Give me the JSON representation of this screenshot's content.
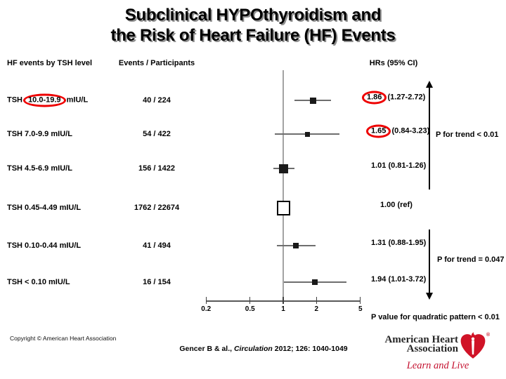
{
  "slide": {
    "title_line1": "Subclinical HYPOthyroidism and",
    "title_line2": "the Risk of Heart Failure (HF) Events"
  },
  "chart_data": {
    "type": "forest-plot",
    "title": "Subclinical HYPOthyroidism and the Risk of Heart Failure (HF) Events",
    "x_axis": {
      "scale": "log",
      "ticks": [
        0.2,
        0.5,
        1,
        2,
        5
      ],
      "range": [
        0.2,
        5
      ],
      "reference_line": 1.0
    },
    "columns": {
      "label_header": "HF events by TSH level",
      "events_header": "Events / Participants",
      "hr_header": "HRs (95% CI)"
    },
    "rows": [
      {
        "label_pre": "TSH ",
        "label_circled": "10.0-19.9",
        "label_post": " mIU/L",
        "events": "40 / 224",
        "hr": 1.86,
        "ci_low": 1.27,
        "ci_high": 2.72,
        "hr_circled": "1.86",
        "hr_rest": " (1.27-2.72)"
      },
      {
        "label": "TSH 7.0-9.9 mIU/L",
        "events": "54 / 422",
        "hr": 1.65,
        "ci_low": 0.84,
        "ci_high": 3.23,
        "hr_circled": "1.65",
        "hr_rest": " (0.84-3.23)"
      },
      {
        "label": "TSH 4.5-6.9 mIU/L",
        "events": "156 / 1422",
        "hr": 1.01,
        "ci_low": 0.81,
        "ci_high": 1.26,
        "hr_text": "1.01 (0.81-1.26)"
      },
      {
        "label": "TSH 0.45-4.49 mIU/L",
        "events": "1762 / 22674",
        "hr": 1.0,
        "reference": true,
        "hr_text": "1.00 (ref)"
      },
      {
        "label": "TSH 0.10-0.44 mIU/L",
        "events": "41 / 494",
        "hr": 1.31,
        "ci_low": 0.88,
        "ci_high": 1.95,
        "hr_text": "1.31 (0.88-1.95)"
      },
      {
        "label": "TSH < 0.10 mIU/L",
        "events": "16 / 154",
        "hr": 1.94,
        "ci_low": 1.01,
        "ci_high": 3.72,
        "hr_text": "1.94 (1.01-3.72)"
      }
    ],
    "annotations": {
      "p_trend_upper": "P for trend < 0.01",
      "p_trend_lower": "P for trend = 0.047",
      "p_quadratic": "P value for quadratic pattern < 0.01"
    },
    "highlight_color": "#ee0000"
  },
  "footer": {
    "copyright": "Copyright © American Heart Association",
    "citation_authors": "Gencer B & al., ",
    "citation_journal": "Circulation",
    "citation_tail": " 2012; 126: 1040-1049"
  },
  "logo": {
    "name_line1": "American Heart",
    "name_line2": "Association",
    "registered": "®",
    "tagline": "Learn and Live",
    "brand_red": "#d01327",
    "text_color": "#262626"
  }
}
